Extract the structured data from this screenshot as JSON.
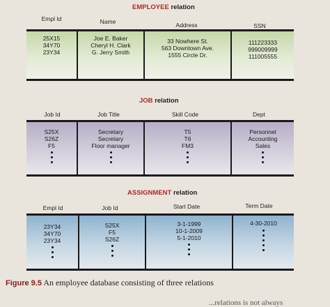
{
  "employee": {
    "title_name": "EMPLOYEE",
    "title_suffix": "relation",
    "headers": [
      "Empl Id",
      "Name",
      "Address",
      "SSN"
    ],
    "columns": [
      [
        "25X15",
        "34Y70",
        "23Y34"
      ],
      [
        "Joe E. Baker",
        "Cheryl H. Clark",
        "G. Jerry Smith"
      ],
      [
        "33 Nowhere St.",
        "563 Downtown Ave.",
        "1555 Circle Dr."
      ],
      [
        "111223333",
        "999009999",
        "111005555"
      ]
    ]
  },
  "job": {
    "title_name": "JOB",
    "title_suffix": "relation",
    "headers": [
      "Job Id",
      "Job Title",
      "Skill Code",
      "Dept"
    ],
    "columns": [
      [
        "S25X",
        "S26Z",
        "F5"
      ],
      [
        "Secretary",
        "Secretary",
        "Floor manager"
      ],
      [
        "T5",
        "T6",
        "FM3"
      ],
      [
        "Personnel",
        "Accounting",
        "Sales"
      ]
    ]
  },
  "assignment": {
    "title_name": "ASSIGNMENT",
    "title_suffix": "relation",
    "headers": [
      "Empl Id",
      "Job Id",
      "Start Date",
      "Term Date"
    ],
    "columns": [
      [
        "23Y34",
        "34Y70",
        "23Y34"
      ],
      [
        "S25X",
        "F5",
        "S26Z"
      ],
      [
        "3-1-1999",
        "10-1-2009",
        "5-1-2010"
      ],
      [
        "4-30-2010"
      ]
    ]
  },
  "caption": {
    "label": "Figure 9.5",
    "text": "An employee database consisting of three relations"
  },
  "bottom_fragment": "...relations is not always"
}
